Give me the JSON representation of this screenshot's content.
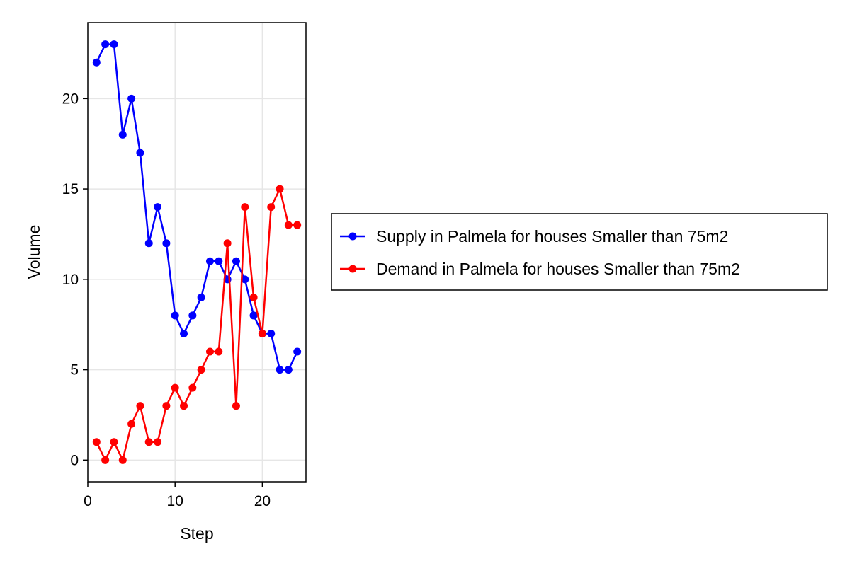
{
  "chart_data": {
    "type": "line",
    "xlabel": "Step",
    "ylabel": "Volume",
    "xlim": [
      0,
      25
    ],
    "ylim": [
      -1.2,
      24.2
    ],
    "xticks": [
      0,
      10,
      20
    ],
    "yticks": [
      0,
      5,
      10,
      15,
      20
    ],
    "grid": true,
    "legend_position": "right",
    "x": [
      1,
      2,
      3,
      4,
      5,
      6,
      7,
      8,
      9,
      10,
      11,
      12,
      13,
      14,
      15,
      16,
      17,
      18,
      19,
      20,
      21,
      22,
      23,
      24
    ],
    "series": [
      {
        "name": "Supply in Palmela for houses Smaller than 75m2",
        "color": "#0000ff",
        "values": [
          22,
          23,
          23,
          18,
          20,
          17,
          12,
          14,
          12,
          8,
          7,
          8,
          9,
          11,
          11,
          10,
          11,
          10,
          8,
          7,
          7,
          5,
          5,
          6
        ]
      },
      {
        "name": "Demand in Palmela for houses Smaller than 75m2",
        "color": "#ff0000",
        "values": [
          1,
          0,
          1,
          0,
          2,
          3,
          1,
          1,
          3,
          4,
          3,
          4,
          5,
          6,
          6,
          12,
          3,
          14,
          9,
          7,
          14,
          15,
          13,
          13
        ]
      }
    ]
  }
}
